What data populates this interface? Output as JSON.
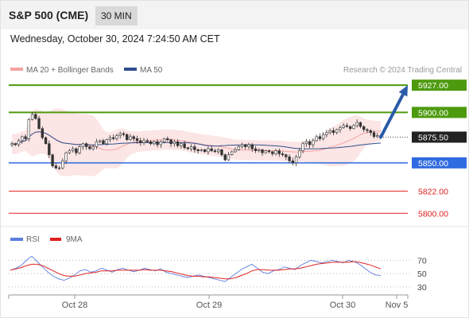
{
  "header": {
    "title": "S&P 500 (CME)",
    "interval": "30 MIN",
    "datetime": "Wednesday, October 30, 2024 7:24:50 AM CET"
  },
  "legend": {
    "items": [
      {
        "label": "MA 20 + Bollinger Bands",
        "color": "#f4a3a3"
      },
      {
        "label": "MA 50",
        "color": "#2e4f8c"
      }
    ],
    "credit": "Research © 2024 Trading Central"
  },
  "rsi_legend": {
    "items": [
      {
        "label": "RSI",
        "color": "#5b7fdd"
      },
      {
        "label": "9MA",
        "color": "#e02020"
      }
    ]
  },
  "chart_data": [
    {
      "type": "candlestick",
      "title": "",
      "x_ticks": [
        "Oct 28",
        "Oct 29",
        "Oct 30",
        "Nov 5"
      ],
      "ylim": [
        5790,
        5935
      ],
      "current_price": 5875.5,
      "levels": [
        {
          "label": "5927.00",
          "value": 5927.0,
          "kind": "resistance",
          "color": "#4d9a0e"
        },
        {
          "label": "5900.00",
          "value": 5900.0,
          "kind": "resistance",
          "color": "#4d9a0e"
        },
        {
          "label": "5875.50",
          "value": 5875.5,
          "kind": "last",
          "color": "#222222"
        },
        {
          "label": "5850.00",
          "value": 5850.0,
          "kind": "pivot",
          "color": "#2f6be0"
        },
        {
          "label": "5822.00",
          "value": 5822.0,
          "kind": "support",
          "color": "#e02020"
        },
        {
          "label": "5800.00",
          "value": 5800.0,
          "kind": "support",
          "color": "#e02020"
        }
      ],
      "target_arrow": {
        "from": 5875.5,
        "to": 5927.0
      },
      "close": [
        5869,
        5868,
        5872,
        5876,
        5874,
        5893,
        5898,
        5894,
        5884,
        5875,
        5869,
        5858,
        5847,
        5845,
        5845,
        5852,
        5860,
        5862,
        5864,
        5860,
        5866,
        5869,
        5866,
        5864,
        5866,
        5871,
        5872,
        5869,
        5873,
        5875,
        5874,
        5877,
        5879,
        5878,
        5873,
        5876,
        5874,
        5872,
        5870,
        5872,
        5871,
        5869,
        5871,
        5868,
        5871,
        5874,
        5873,
        5869,
        5871,
        5867,
        5869,
        5865,
        5864,
        5866,
        5863,
        5862,
        5863,
        5861,
        5864,
        5862,
        5861,
        5863,
        5858,
        5853,
        5858,
        5861,
        5863,
        5866,
        5868,
        5866,
        5868,
        5864,
        5862,
        5863,
        5860,
        5862,
        5861,
        5859,
        5862,
        5859,
        5858,
        5856,
        5852,
        5850,
        5856,
        5862,
        5869,
        5871,
        5868,
        5872,
        5876,
        5874,
        5878,
        5880,
        5882,
        5880,
        5883,
        5885,
        5887,
        5886,
        5884,
        5887,
        5890,
        5886,
        5883,
        5882,
        5880,
        5876,
        5877,
        5875.5
      ]
    },
    {
      "type": "line",
      "title": "RSI",
      "ylim": [
        25,
        80
      ],
      "y_ticks": [
        70,
        50,
        30
      ],
      "series": [
        {
          "name": "RSI",
          "values": [
            55,
            58,
            62,
            70,
            76,
            68,
            60,
            52,
            46,
            42,
            40,
            43,
            48,
            54,
            56,
            52,
            54,
            58,
            55,
            52,
            56,
            58,
            55,
            53,
            55,
            58,
            56,
            54,
            57,
            52,
            50,
            48,
            46,
            44,
            46,
            48,
            46,
            44,
            42,
            40,
            38,
            44,
            50,
            56,
            60,
            64,
            58,
            52,
            50,
            54,
            56,
            60,
            58,
            56,
            62,
            66,
            70,
            68,
            66,
            68,
            70,
            68,
            66,
            70,
            68,
            64,
            58,
            52,
            48,
            47
          ]
        },
        {
          "name": "9MA",
          "values": [
            55,
            57,
            59,
            62,
            64,
            64,
            62,
            58,
            54,
            50,
            47,
            46,
            46,
            48,
            50,
            51,
            52,
            54,
            54,
            54,
            55,
            55,
            55,
            55,
            55,
            56,
            55,
            55,
            55,
            54,
            53,
            51,
            49,
            47,
            46,
            46,
            45,
            45,
            44,
            43,
            42,
            42,
            44,
            47,
            50,
            54,
            56,
            56,
            55,
            55,
            55,
            56,
            57,
            57,
            58,
            60,
            62,
            64,
            65,
            66,
            67,
            67,
            67,
            67,
            68,
            67,
            65,
            63,
            60,
            57
          ]
        }
      ]
    }
  ]
}
